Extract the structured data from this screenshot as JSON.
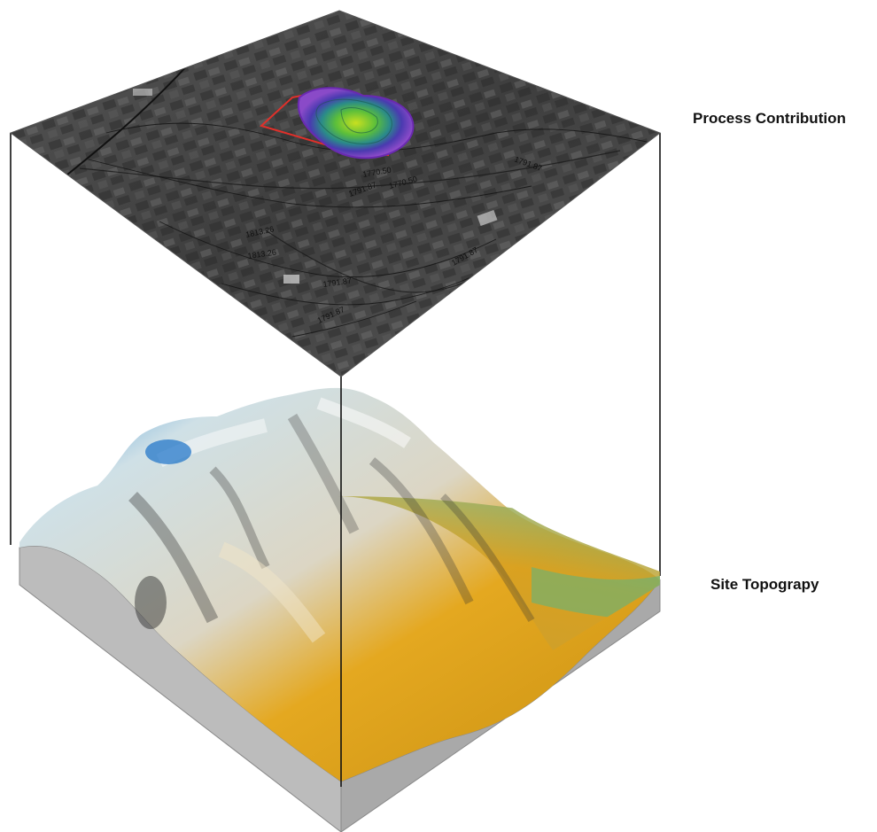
{
  "labels": {
    "top_layer": "Process Contribution",
    "bottom_layer": "Site Topograpy"
  },
  "contour_labels": [
    "1813.26",
    "1791.87",
    "1770.50",
    "1791.87",
    "1813.26",
    "1791.87",
    "1791.87",
    "1791.87",
    "1770.50"
  ],
  "colors": {
    "aerial_dark": "#3a3a3a",
    "aerial_light": "#7a7a7a",
    "plume_outer": "#5a2aa8",
    "plume_inner": "#7ac832",
    "site_boundary": "#e0302a",
    "terrain_yellow": "#e8a818",
    "terrain_white": "#dfe6e8",
    "terrain_blue": "#1a80d0",
    "terrain_green": "#5ab070",
    "base_side": "#b8b8b8"
  }
}
